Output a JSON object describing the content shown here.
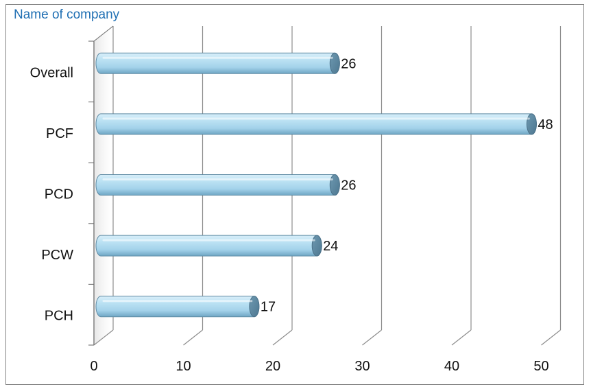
{
  "chart_data": {
    "type": "bar",
    "orientation": "horizontal",
    "title": "Name of company",
    "categories": [
      "Overall",
      "PCF",
      "PCD",
      "PCW",
      "PCH"
    ],
    "values": [
      26,
      48,
      26,
      24,
      17
    ],
    "xlim": [
      0,
      50
    ],
    "xticks": [
      "0",
      "10",
      "20",
      "30",
      "40",
      "50"
    ],
    "grid": true,
    "legend": "none",
    "style": "3d-cylinder",
    "bar_color": "#a9d6ee",
    "gridline_color": "#8c8c8c",
    "title_color": "#1f6fb3"
  }
}
